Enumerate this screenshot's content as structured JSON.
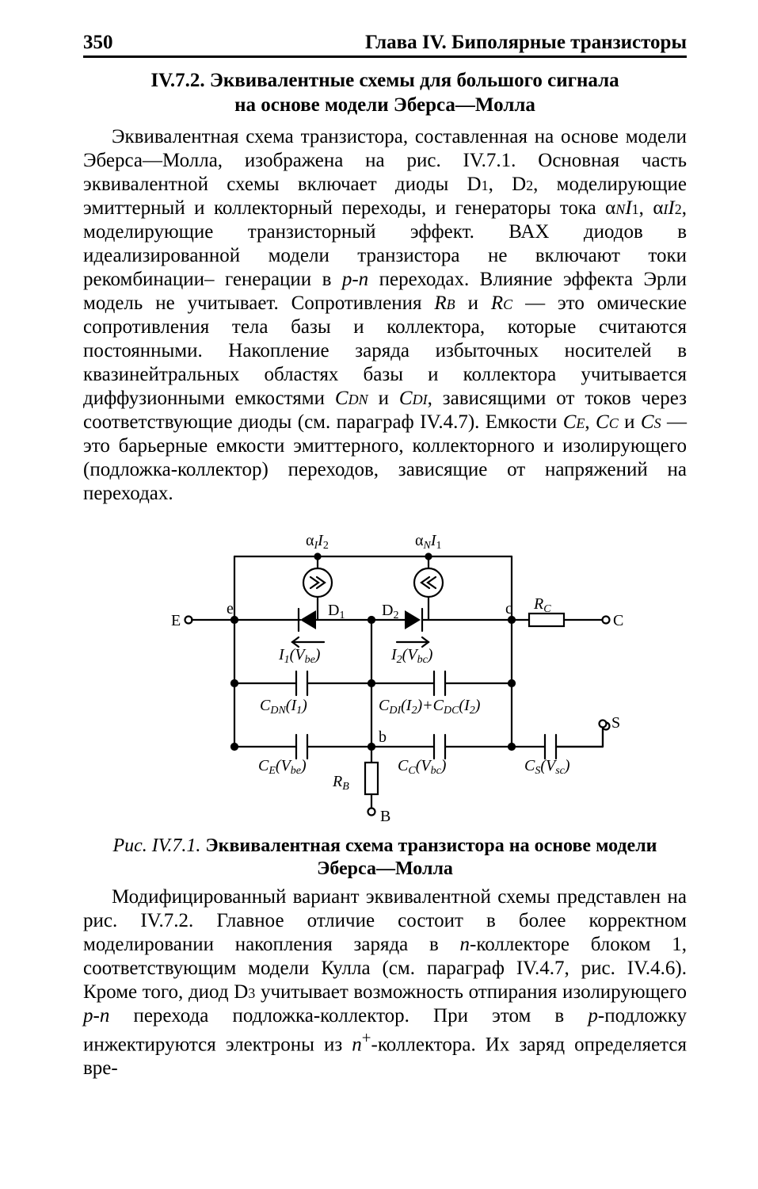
{
  "header": {
    "page_number": "350",
    "chapter_title": "Глава IV. Биполярные транзисторы"
  },
  "section": {
    "title_line1": "IV.7.2. Эквивалентные схемы для большого сигнала",
    "title_line2": "на основе модели Эберса—Молла"
  },
  "para1_html": "Эквивалентная схема транзистора, составленная на основе модели Эберса—Молла, изображена на рис. IV.7.1. Основная часть эквивалентной схемы включает диоды D<span class=\"sub\">1</span>, D<span class=\"sub\">2</span>, моделирующие эмиттерный и коллекторный переходы, и генераторы тока α<span class=\"ital sub\">N</span><span class=\"ital\">I</span><span class=\"sub\">1</span>,  α<span class=\"ital sub\">I</span><span class=\"ital\">I</span><span class=\"sub\">2</span>, моделирующие транзисторный эффект. ВАХ диодов в идеализированной модели транзистора не включают токи рекомбинации– генерации в <span class=\"ital\">p-n</span> переходах. Влияние эффекта Эрли модель не учитывает. Сопротивления <span class=\"ital\">R</span><span class=\"ital sub\">B</span> и <span class=\"ital\">R</span><span class=\"ital sub\">C</span> — это омические сопротивления тела базы и коллектора, которые считаются постоянными. Накопление заряда избыточных носителей в квазинейтральных областях базы и коллектора учитывается диффузионными емкостями <span class=\"ital\">C</span><span class=\"ital sub\">DN</span> и <span class=\"ital\">C</span><span class=\"ital sub\">DI</span>, зависящими от токов через соответствующие диоды (см. параграф IV.4.7). Емкости <span class=\"ital\">C</span><span class=\"ital sub\">E</span>, <span class=\"ital\">C</span><span class=\"ital sub\">C</span> и <span class=\"ital\">C</span><span class=\"ital sub\">S</span> — это барьерные емкости эмиттерного, коллекторного и изолирующего (подложка-коллектор) переходов, зависящие от напряжений на переходах.",
  "figure": {
    "caption_ref": "Рис. IV.7.1.",
    "caption_title": "Эквивалентная схема транзистора на основе модели Эберса—Молла",
    "labels": {
      "aI_I2": "αII2",
      "aN_I1": "αNI1",
      "D1": "D1",
      "D2": "D2",
      "I1_Vbe": "I1(Vbe)",
      "I2_Vbc": "I2(Vbc)",
      "CDN_I1": "CDN(I1)",
      "CDI_CDC": "CDI(I2)+CDC(I2)",
      "CE_Vbe": "CE(Vbe)",
      "CC_Vbc": "CC(Vbc)",
      "CS_Vsc": "CS(Vsc)",
      "RC": "RC",
      "RB": "RB",
      "E": "E",
      "C": "C",
      "S": "S",
      "B": "B",
      "e": "e",
      "c": "c",
      "b": "b"
    },
    "style": {
      "stroke": "#000000",
      "line_width": 2.2,
      "label_fontsize": 20,
      "node_radius": 4,
      "terminal_radius": 4.5,
      "background": "#ffffff"
    }
  },
  "para2_html": "Модифицированный вариант эквивалентной схемы представлен на рис. IV.7.2. Главное отличие состоит в более корректном моделировании накопления заряда в <span class=\"ital\">n</span>-коллекторе блоком 1, соответствующим модели Кулла (см. параграф IV.4.7, рис. IV.4.6). Кроме того, диод D<span class=\"sub\">3</span> учитывает возможность отпирания изолирующего <span class=\"ital\">p-n</span> перехода подложка-коллектор. При этом в <span class=\"ital\">p</span>-подложку инжектируются электроны из <span class=\"ital\">n</span><sup>+</sup>-коллектора. Их заряд определяется вре-"
}
